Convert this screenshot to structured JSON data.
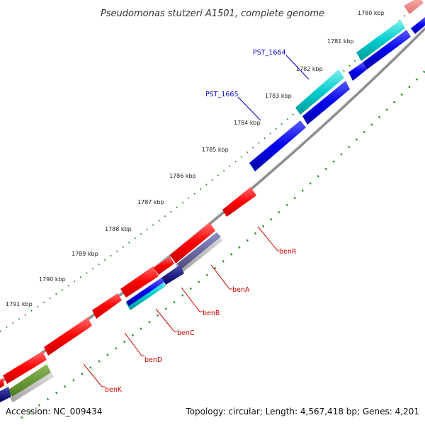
{
  "title": "Pseudomonas stutzeri A1501, complete genome",
  "footer": {
    "accession": "Accession: NC_009434",
    "topology": "Topology: circular; Length: 4,567,418 bp; Genes: 4,201"
  },
  "ticks": [
    "1780 kbp",
    "1781 kbp",
    "1782 kbp",
    "1783 kbp",
    "1784 kbp",
    "1785 kbp",
    "1786 kbp",
    "1787 kbp",
    "1788 kbp",
    "1789 kbp",
    "1790 kbp",
    "1791 kbp"
  ],
  "forward_labels": [
    "PST_1664",
    "PST_1665"
  ],
  "reverse_labels": [
    "benR",
    "benA",
    "benB",
    "benC",
    "benD",
    "benK"
  ],
  "colors": {
    "cds_red": "#ff0000",
    "cds_blue": "#0000ee",
    "cds_cyan": "#00cccc",
    "cds_navy": "#000080",
    "cds_olive": "#5a8a2a",
    "backbone": "#8a8a8a",
    "tick_dots": "#2a8a2a",
    "reverse_label": "#cc0000",
    "forward_label": "#0000cc"
  }
}
